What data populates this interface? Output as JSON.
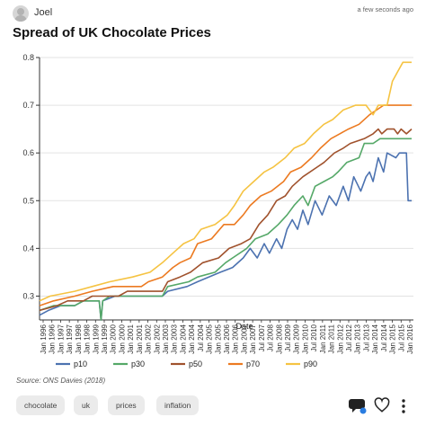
{
  "header": {
    "user": "Joel",
    "time": "a few seconds ago"
  },
  "title": "Spread of UK Chocolate Prices",
  "source": "Source: ONS Davies (2018)",
  "tags": [
    "chocolate",
    "uk",
    "prices",
    "inflation"
  ],
  "icons": [
    "avatar-icon",
    "comment-icon",
    "heart-icon",
    "more-icon"
  ],
  "chart_data": {
    "type": "line",
    "xlabel": "Date",
    "ylabel": "",
    "ylim": [
      0.25,
      0.8
    ],
    "yticks": [
      0.3,
      0.4,
      0.5,
      0.6,
      0.7,
      0.8
    ],
    "xlim": [
      1996.0,
      2017.3
    ],
    "grid": "horizontal",
    "legend": "bottom",
    "xtick_labels": [
      "Jan 1996",
      "Jan 1996",
      "Jan 1997",
      "Jan 1997",
      "Jan 1998",
      "Jan 1998",
      "Jan 1999",
      "Jan 1999",
      "Jan 2000",
      "Jan 2000",
      "Jan 2001",
      "Jan 2001",
      "Jan 2002",
      "Jan 2002",
      "Jan 2003",
      "Jan 2003",
      "Jan 2004",
      "Jan 2004",
      "Jul 2004",
      "Jan 2005",
      "Jan 2005",
      "Jan 2006",
      "Jan 2006",
      "Jan 2007",
      "Jan 2007",
      "Jul 2007",
      "Jul 2008",
      "Jan 2008",
      "Jul 2009",
      "Jan 2009",
      "Jan 2010",
      "Jul 2010",
      "Jan 2011",
      "Jan 2011",
      "Jan 2012",
      "Jul 2012",
      "Jan 2013",
      "Jul 2013",
      "Jan 2014",
      "Jul 2014",
      "Jan 2015",
      "Jul 2015",
      "Jan 2016"
    ],
    "series": [
      {
        "name": "p10",
        "color": "#4c72b0",
        "points": [
          [
            1996.0,
            0.26
          ],
          [
            1996.5,
            0.27
          ],
          [
            1997.2,
            0.28
          ],
          [
            1998.0,
            0.28
          ],
          [
            1998.5,
            0.29
          ],
          [
            1999.4,
            0.29
          ],
          [
            1999.5,
            0.25
          ],
          [
            1999.6,
            0.29
          ],
          [
            2000.3,
            0.3
          ],
          [
            2003.0,
            0.3
          ],
          [
            2003.3,
            0.31
          ],
          [
            2004.4,
            0.32
          ],
          [
            2005.0,
            0.33
          ],
          [
            2006.3,
            0.35
          ],
          [
            2007.0,
            0.36
          ],
          [
            2007.6,
            0.38
          ],
          [
            2008.0,
            0.4
          ],
          [
            2008.4,
            0.38
          ],
          [
            2008.8,
            0.41
          ],
          [
            2009.1,
            0.39
          ],
          [
            2009.5,
            0.42
          ],
          [
            2009.8,
            0.4
          ],
          [
            2010.1,
            0.44
          ],
          [
            2010.4,
            0.46
          ],
          [
            2010.7,
            0.44
          ],
          [
            2011.0,
            0.48
          ],
          [
            2011.3,
            0.45
          ],
          [
            2011.7,
            0.5
          ],
          [
            2012.1,
            0.47
          ],
          [
            2012.5,
            0.51
          ],
          [
            2012.9,
            0.49
          ],
          [
            2013.3,
            0.53
          ],
          [
            2013.6,
            0.5
          ],
          [
            2013.9,
            0.55
          ],
          [
            2014.3,
            0.52
          ],
          [
            2014.6,
            0.55
          ],
          [
            2014.8,
            0.56
          ],
          [
            2015.0,
            0.54
          ],
          [
            2015.3,
            0.59
          ],
          [
            2015.6,
            0.56
          ],
          [
            2015.8,
            0.6
          ],
          [
            2016.3,
            0.59
          ],
          [
            2016.5,
            0.6
          ],
          [
            2016.9,
            0.6
          ],
          [
            2017.0,
            0.5
          ],
          [
            2017.2,
            0.5
          ]
        ]
      },
      {
        "name": "p30",
        "color": "#55a868",
        "points": [
          [
            1996.0,
            0.27
          ],
          [
            1996.8,
            0.28
          ],
          [
            1998.0,
            0.28
          ],
          [
            1998.5,
            0.29
          ],
          [
            1999.4,
            0.29
          ],
          [
            1999.5,
            0.25
          ],
          [
            1999.6,
            0.29
          ],
          [
            2000.0,
            0.3
          ],
          [
            2003.0,
            0.3
          ],
          [
            2003.3,
            0.32
          ],
          [
            2004.5,
            0.33
          ],
          [
            2005.0,
            0.34
          ],
          [
            2006.0,
            0.35
          ],
          [
            2006.6,
            0.37
          ],
          [
            2007.0,
            0.38
          ],
          [
            2007.8,
            0.4
          ],
          [
            2008.3,
            0.42
          ],
          [
            2009.0,
            0.43
          ],
          [
            2009.6,
            0.45
          ],
          [
            2010.1,
            0.47
          ],
          [
            2010.5,
            0.49
          ],
          [
            2011.0,
            0.51
          ],
          [
            2011.3,
            0.49
          ],
          [
            2011.7,
            0.53
          ],
          [
            2012.2,
            0.54
          ],
          [
            2012.7,
            0.55
          ],
          [
            2013.0,
            0.56
          ],
          [
            2013.5,
            0.58
          ],
          [
            2014.2,
            0.59
          ],
          [
            2014.5,
            0.62
          ],
          [
            2015.0,
            0.62
          ],
          [
            2015.4,
            0.63
          ],
          [
            2016.0,
            0.63
          ],
          [
            2017.2,
            0.63
          ]
        ]
      },
      {
        "name": "p50",
        "color": "#a0522d",
        "points": [
          [
            1996.0,
            0.27
          ],
          [
            1997.0,
            0.28
          ],
          [
            1997.6,
            0.29
          ],
          [
            1998.5,
            0.29
          ],
          [
            1999.0,
            0.3
          ],
          [
            2000.5,
            0.3
          ],
          [
            2001.0,
            0.31
          ],
          [
            2003.0,
            0.31
          ],
          [
            2003.3,
            0.33
          ],
          [
            2004.0,
            0.34
          ],
          [
            2004.6,
            0.35
          ],
          [
            2005.3,
            0.37
          ],
          [
            2006.2,
            0.38
          ],
          [
            2006.8,
            0.4
          ],
          [
            2007.5,
            0.41
          ],
          [
            2008.0,
            0.42
          ],
          [
            2008.5,
            0.45
          ],
          [
            2009.0,
            0.47
          ],
          [
            2009.5,
            0.5
          ],
          [
            2010.0,
            0.51
          ],
          [
            2010.4,
            0.53
          ],
          [
            2011.0,
            0.55
          ],
          [
            2011.8,
            0.57
          ],
          [
            2012.2,
            0.58
          ],
          [
            2012.8,
            0.6
          ],
          [
            2013.3,
            0.61
          ],
          [
            2013.7,
            0.62
          ],
          [
            2014.5,
            0.63
          ],
          [
            2015.0,
            0.64
          ],
          [
            2015.3,
            0.65
          ],
          [
            2015.5,
            0.64
          ],
          [
            2015.8,
            0.65
          ],
          [
            2016.2,
            0.65
          ],
          [
            2016.4,
            0.64
          ],
          [
            2016.6,
            0.65
          ],
          [
            2016.9,
            0.64
          ],
          [
            2017.2,
            0.65
          ]
        ]
      },
      {
        "name": "p70",
        "color": "#ec7a21",
        "points": [
          [
            1996.0,
            0.28
          ],
          [
            1996.8,
            0.29
          ],
          [
            1998.0,
            0.3
          ],
          [
            1999.0,
            0.31
          ],
          [
            2000.2,
            0.32
          ],
          [
            2001.8,
            0.32
          ],
          [
            2002.2,
            0.33
          ],
          [
            2003.0,
            0.34
          ],
          [
            2003.6,
            0.36
          ],
          [
            2004.0,
            0.37
          ],
          [
            2004.6,
            0.38
          ],
          [
            2005.0,
            0.41
          ],
          [
            2005.8,
            0.42
          ],
          [
            2006.5,
            0.45
          ],
          [
            2007.1,
            0.45
          ],
          [
            2007.6,
            0.47
          ],
          [
            2008.0,
            0.49
          ],
          [
            2008.6,
            0.51
          ],
          [
            2009.2,
            0.52
          ],
          [
            2009.9,
            0.54
          ],
          [
            2010.3,
            0.56
          ],
          [
            2010.9,
            0.57
          ],
          [
            2011.5,
            0.59
          ],
          [
            2012.0,
            0.61
          ],
          [
            2012.6,
            0.63
          ],
          [
            2013.1,
            0.64
          ],
          [
            2013.6,
            0.65
          ],
          [
            2014.2,
            0.66
          ],
          [
            2014.8,
            0.68
          ],
          [
            2015.2,
            0.69
          ],
          [
            2015.6,
            0.7
          ],
          [
            2016.0,
            0.7
          ],
          [
            2017.2,
            0.7
          ]
        ]
      },
      {
        "name": "p90",
        "color": "#f5c342",
        "points": [
          [
            1996.0,
            0.29
          ],
          [
            1996.6,
            0.3
          ],
          [
            1998.0,
            0.31
          ],
          [
            1999.0,
            0.32
          ],
          [
            2000.0,
            0.33
          ],
          [
            2001.3,
            0.34
          ],
          [
            2002.3,
            0.35
          ],
          [
            2003.0,
            0.37
          ],
          [
            2003.6,
            0.39
          ],
          [
            2004.2,
            0.41
          ],
          [
            2004.8,
            0.42
          ],
          [
            2005.2,
            0.44
          ],
          [
            2006.0,
            0.45
          ],
          [
            2006.7,
            0.47
          ],
          [
            2007.1,
            0.49
          ],
          [
            2007.6,
            0.52
          ],
          [
            2008.2,
            0.54
          ],
          [
            2008.8,
            0.56
          ],
          [
            2009.3,
            0.57
          ],
          [
            2010.0,
            0.59
          ],
          [
            2010.5,
            0.61
          ],
          [
            2011.1,
            0.62
          ],
          [
            2011.6,
            0.64
          ],
          [
            2012.2,
            0.66
          ],
          [
            2012.7,
            0.67
          ],
          [
            2013.3,
            0.69
          ],
          [
            2014.0,
            0.7
          ],
          [
            2014.6,
            0.7
          ],
          [
            2015.0,
            0.68
          ],
          [
            2015.3,
            0.7
          ],
          [
            2015.8,
            0.7
          ],
          [
            2016.1,
            0.75
          ],
          [
            2016.4,
            0.77
          ],
          [
            2016.7,
            0.79
          ],
          [
            2017.2,
            0.79
          ]
        ]
      }
    ]
  }
}
